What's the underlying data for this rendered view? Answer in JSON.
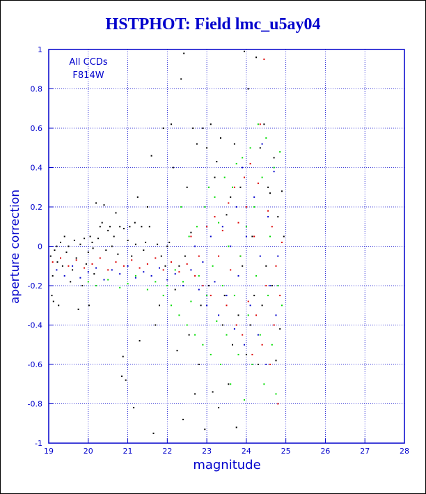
{
  "title": "HSTPHOT: Field lmc_u5ay04",
  "annotation": [
    "All CCDs",
    "F814W"
  ],
  "chart_data": {
    "type": "scatter",
    "title": "HSTPHOT: Field lmc_u5ay04",
    "xlabel": "magnitude",
    "ylabel": "aperture correction",
    "xlim": [
      19,
      28
    ],
    "ylim": [
      -1,
      1
    ],
    "xticks": [
      "19",
      "20",
      "21",
      "22",
      "23",
      "24",
      "25",
      "26",
      "27",
      "28"
    ],
    "yticks": [
      "-1",
      "-0.8",
      "-0.6",
      "-0.4",
      "-0.2",
      "0",
      "0.2",
      "0.4",
      "0.6",
      "0.8",
      "1"
    ],
    "grid": true,
    "colors": {
      "axis": "#0000cc",
      "grid": "#0000cc",
      "title": "#0000cc"
    },
    "series": [
      {
        "color": "#000000",
        "points": [
          [
            19.05,
            -0.05
          ],
          [
            19.08,
            -0.25
          ],
          [
            19.1,
            -0.15
          ],
          [
            19.12,
            -0.28
          ],
          [
            19.15,
            -0.02
          ],
          [
            19.2,
            0.0
          ],
          [
            19.22,
            -0.08
          ],
          [
            19.25,
            -0.3
          ],
          [
            19.3,
            0.02
          ],
          [
            19.35,
            -0.1
          ],
          [
            19.4,
            0.05
          ],
          [
            19.45,
            -0.03
          ],
          [
            19.5,
            0.0
          ],
          [
            19.55,
            -0.18
          ],
          [
            19.6,
            -0.12
          ],
          [
            19.65,
            0.03
          ],
          [
            19.7,
            -0.06
          ],
          [
            19.75,
            -0.32
          ],
          [
            19.8,
            0.01
          ],
          [
            19.85,
            -0.2
          ],
          [
            19.9,
            0.04
          ],
          [
            19.95,
            -0.09
          ],
          [
            20.0,
            -0.03
          ],
          [
            20.02,
            -0.3
          ],
          [
            20.05,
            0.05
          ],
          [
            20.1,
            0.02
          ],
          [
            20.12,
            -0.01
          ],
          [
            20.15,
            -0.14
          ],
          [
            20.2,
            0.22
          ],
          [
            20.25,
            0.04
          ],
          [
            20.3,
            0.1
          ],
          [
            20.35,
            0.12
          ],
          [
            20.4,
            0.21
          ],
          [
            20.45,
            -0.02
          ],
          [
            20.5,
            0.08
          ],
          [
            20.55,
            0.1
          ],
          [
            20.6,
            0.0
          ],
          [
            20.65,
            0.05
          ],
          [
            20.7,
            0.17
          ],
          [
            20.75,
            -0.04
          ],
          [
            20.8,
            0.1
          ],
          [
            20.85,
            -0.66
          ],
          [
            20.88,
            -0.56
          ],
          [
            20.9,
            0.09
          ],
          [
            20.95,
            -0.68
          ],
          [
            21.0,
            0.03
          ],
          [
            21.05,
            0.1
          ],
          [
            21.1,
            -0.05
          ],
          [
            21.15,
            -0.82
          ],
          [
            21.18,
            0.12
          ],
          [
            21.2,
            0.01
          ],
          [
            21.25,
            0.25
          ],
          [
            21.3,
            -0.48
          ],
          [
            21.35,
            0.1
          ],
          [
            21.4,
            -0.02
          ],
          [
            21.45,
            0.02
          ],
          [
            21.5,
            0.2
          ],
          [
            21.55,
            0.1
          ],
          [
            21.6,
            0.46
          ],
          [
            21.65,
            -0.95
          ],
          [
            21.7,
            -0.4
          ],
          [
            21.75,
            0.01
          ],
          [
            21.8,
            -0.3
          ],
          [
            21.85,
            -0.05
          ],
          [
            21.9,
            0.6
          ],
          [
            21.95,
            -0.1
          ],
          [
            22.0,
            0.0
          ],
          [
            22.05,
            0.02
          ],
          [
            22.1,
            0.62
          ],
          [
            22.15,
            0.4
          ],
          [
            22.2,
            -0.22
          ],
          [
            22.25,
            -0.53
          ],
          [
            22.3,
            -0.1
          ],
          [
            22.35,
            0.85
          ],
          [
            22.4,
            -0.88
          ],
          [
            22.42,
            0.98
          ],
          [
            22.45,
            -0.05
          ],
          [
            22.5,
            0.3
          ],
          [
            22.55,
            -0.45
          ],
          [
            22.6,
            0.07
          ],
          [
            22.65,
            0.6
          ],
          [
            22.7,
            -0.75
          ],
          [
            22.75,
            0.52
          ],
          [
            22.8,
            -0.6
          ],
          [
            22.85,
            -0.3
          ],
          [
            22.9,
            0.6
          ],
          [
            22.95,
            -0.93
          ],
          [
            23.0,
            0.5
          ],
          [
            23.05,
            -0.2
          ],
          [
            23.1,
            0.62
          ],
          [
            23.15,
            -0.74
          ],
          [
            23.2,
            0.35
          ],
          [
            23.25,
            0.43
          ],
          [
            23.3,
            -0.82
          ],
          [
            23.35,
            0.55
          ],
          [
            23.4,
            -0.4
          ],
          [
            23.45,
            -0.25
          ],
          [
            23.5,
            0.16
          ],
          [
            23.55,
            -0.7
          ],
          [
            23.6,
            0.25
          ],
          [
            23.65,
            -0.5
          ],
          [
            23.7,
            0.52
          ],
          [
            23.75,
            -0.92
          ],
          [
            23.8,
            -0.35
          ],
          [
            23.85,
            0.3
          ],
          [
            23.9,
            -0.1
          ],
          [
            23.95,
            0.99
          ],
          [
            24.0,
            -0.55
          ],
          [
            24.05,
            0.8
          ],
          [
            24.1,
            -0.4
          ],
          [
            24.15,
            0.05
          ],
          [
            24.2,
            -0.25
          ],
          [
            24.25,
            0.96
          ],
          [
            24.3,
            -0.6
          ],
          [
            24.35,
            0.5
          ],
          [
            24.4,
            -0.3
          ],
          [
            24.45,
            0.62
          ],
          [
            24.5,
            -0.1
          ],
          [
            24.55,
            0.3
          ],
          [
            24.6,
            0.27
          ],
          [
            24.65,
            -0.2
          ],
          [
            24.7,
            0.45
          ],
          [
            24.75,
            -0.58
          ],
          [
            24.8,
            0.15
          ],
          [
            24.85,
            -0.42
          ],
          [
            24.9,
            0.28
          ],
          [
            24.95,
            0.05
          ]
        ]
      },
      {
        "color": "#dd0000",
        "points": [
          [
            19.1,
            -0.08
          ],
          [
            19.3,
            -0.06
          ],
          [
            19.5,
            -0.1
          ],
          [
            19.7,
            -0.07
          ],
          [
            19.9,
            -0.11
          ],
          [
            20.1,
            -0.09
          ],
          [
            20.3,
            -0.06
          ],
          [
            20.5,
            -0.12
          ],
          [
            20.7,
            -0.08
          ],
          [
            20.9,
            -0.1
          ],
          [
            21.1,
            -0.07
          ],
          [
            21.3,
            -0.11
          ],
          [
            21.5,
            -0.09
          ],
          [
            21.7,
            -0.06
          ],
          [
            21.9,
            -0.12
          ],
          [
            22.1,
            -0.08
          ],
          [
            22.3,
            -0.13
          ],
          [
            22.5,
            -0.09
          ],
          [
            22.6,
            0.05
          ],
          [
            22.7,
            -0.15
          ],
          [
            22.8,
            -0.05
          ],
          [
            22.9,
            -0.2
          ],
          [
            23.0,
            0.1
          ],
          [
            23.1,
            -0.25
          ],
          [
            23.2,
            0.15
          ],
          [
            23.3,
            -0.05
          ],
          [
            23.4,
            0.08
          ],
          [
            23.5,
            -0.3
          ],
          [
            23.55,
            0.22
          ],
          [
            23.6,
            -0.12
          ],
          [
            23.7,
            0.3
          ],
          [
            23.75,
            -0.4
          ],
          [
            23.8,
            0.12
          ],
          [
            23.85,
            -0.05
          ],
          [
            23.9,
            -0.45
          ],
          [
            23.95,
            0.35
          ],
          [
            24.0,
            0.2
          ],
          [
            24.05,
            -0.28
          ],
          [
            24.1,
            0.42
          ],
          [
            24.15,
            -0.55
          ],
          [
            24.2,
            0.05
          ],
          [
            24.25,
            -0.35
          ],
          [
            24.3,
            0.32
          ],
          [
            24.35,
            0.62
          ],
          [
            24.4,
            -0.5
          ],
          [
            24.45,
            0.95
          ],
          [
            24.5,
            -0.2
          ],
          [
            24.55,
            0.18
          ],
          [
            24.6,
            -0.6
          ],
          [
            24.65,
            0.1
          ],
          [
            24.7,
            -0.4
          ],
          [
            24.75,
            -0.1
          ],
          [
            24.8,
            -0.8
          ],
          [
            24.85,
            -0.25
          ],
          [
            24.9,
            0.02
          ]
        ]
      },
      {
        "color": "#0000cc",
        "points": [
          [
            19.2,
            -0.12
          ],
          [
            19.4,
            -0.15
          ],
          [
            19.6,
            -0.1
          ],
          [
            19.8,
            -0.16
          ],
          [
            20.0,
            -0.13
          ],
          [
            20.2,
            -0.11
          ],
          [
            20.4,
            -0.17
          ],
          [
            20.6,
            -0.12
          ],
          [
            20.8,
            -0.14
          ],
          [
            21.0,
            -0.1
          ],
          [
            21.2,
            -0.16
          ],
          [
            21.4,
            -0.13
          ],
          [
            21.6,
            -0.15
          ],
          [
            21.8,
            -0.11
          ],
          [
            22.0,
            -0.17
          ],
          [
            22.2,
            -0.14
          ],
          [
            22.4,
            -0.2
          ],
          [
            22.6,
            -0.12
          ],
          [
            22.7,
            0.0
          ],
          [
            22.8,
            -0.22
          ],
          [
            22.9,
            -0.08
          ],
          [
            23.0,
            -0.3
          ],
          [
            23.1,
            0.05
          ],
          [
            23.2,
            -0.18
          ],
          [
            23.3,
            -0.35
          ],
          [
            23.4,
            0.1
          ],
          [
            23.5,
            -0.25
          ],
          [
            23.6,
            0.0
          ],
          [
            23.7,
            -0.42
          ],
          [
            23.75,
            0.2
          ],
          [
            23.8,
            -0.15
          ],
          [
            23.9,
            0.4
          ],
          [
            23.95,
            -0.5
          ],
          [
            24.0,
            0.05
          ],
          [
            24.1,
            -0.3
          ],
          [
            24.2,
            0.25
          ],
          [
            24.3,
            -0.45
          ],
          [
            24.35,
            -0.05
          ],
          [
            24.4,
            0.52
          ],
          [
            24.5,
            -0.6
          ],
          [
            24.55,
            0.15
          ],
          [
            24.6,
            -0.2
          ],
          [
            24.7,
            0.38
          ],
          [
            24.75,
            -0.35
          ],
          [
            24.8,
            -0.05
          ]
        ]
      },
      {
        "color": "#00dd00",
        "points": [
          [
            20.0,
            -0.18
          ],
          [
            20.2,
            -0.2
          ],
          [
            20.5,
            -0.17
          ],
          [
            20.8,
            -0.21
          ],
          [
            21.0,
            -0.19
          ],
          [
            21.2,
            -0.15
          ],
          [
            21.5,
            -0.22
          ],
          [
            21.7,
            -0.18
          ],
          [
            21.9,
            -0.25
          ],
          [
            22.0,
            -0.2
          ],
          [
            22.1,
            -0.3
          ],
          [
            22.2,
            -0.12
          ],
          [
            22.3,
            -0.35
          ],
          [
            22.35,
            0.2
          ],
          [
            22.4,
            -0.18
          ],
          [
            22.5,
            -0.4
          ],
          [
            22.55,
            0.05
          ],
          [
            22.6,
            -0.28
          ],
          [
            22.7,
            -0.45
          ],
          [
            22.75,
            0.1
          ],
          [
            22.8,
            -0.15
          ],
          [
            22.9,
            -0.5
          ],
          [
            22.95,
            0.2
          ],
          [
            23.0,
            -0.25
          ],
          [
            23.05,
            0.3
          ],
          [
            23.1,
            -0.55
          ],
          [
            23.15,
            -0.1
          ],
          [
            23.2,
            0.25
          ],
          [
            23.25,
            -0.38
          ],
          [
            23.3,
            0.12
          ],
          [
            23.35,
            -0.6
          ],
          [
            23.4,
            -0.2
          ],
          [
            23.45,
            0.35
          ],
          [
            23.5,
            -0.45
          ],
          [
            23.55,
            0.0
          ],
          [
            23.6,
            -0.7
          ],
          [
            23.65,
            0.3
          ],
          [
            23.7,
            -0.25
          ],
          [
            23.75,
            0.42
          ],
          [
            23.8,
            -0.55
          ],
          [
            23.85,
            -0.05
          ],
          [
            23.9,
            0.45
          ],
          [
            23.95,
            -0.78
          ],
          [
            24.0,
            0.1
          ],
          [
            24.05,
            -0.35
          ],
          [
            24.1,
            0.5
          ],
          [
            24.15,
            -0.6
          ],
          [
            24.2,
            0.2
          ],
          [
            24.25,
            -0.15
          ],
          [
            24.3,
            0.62
          ],
          [
            24.35,
            -0.45
          ],
          [
            24.4,
            0.35
          ],
          [
            24.45,
            -0.7
          ],
          [
            24.5,
            0.55
          ],
          [
            24.55,
            -0.25
          ],
          [
            24.6,
            0.05
          ],
          [
            24.65,
            -0.5
          ],
          [
            24.7,
            0.4
          ],
          [
            24.75,
            -0.75
          ],
          [
            24.8,
            -0.2
          ],
          [
            24.85,
            0.48
          ],
          [
            24.9,
            -0.3
          ]
        ]
      }
    ]
  }
}
